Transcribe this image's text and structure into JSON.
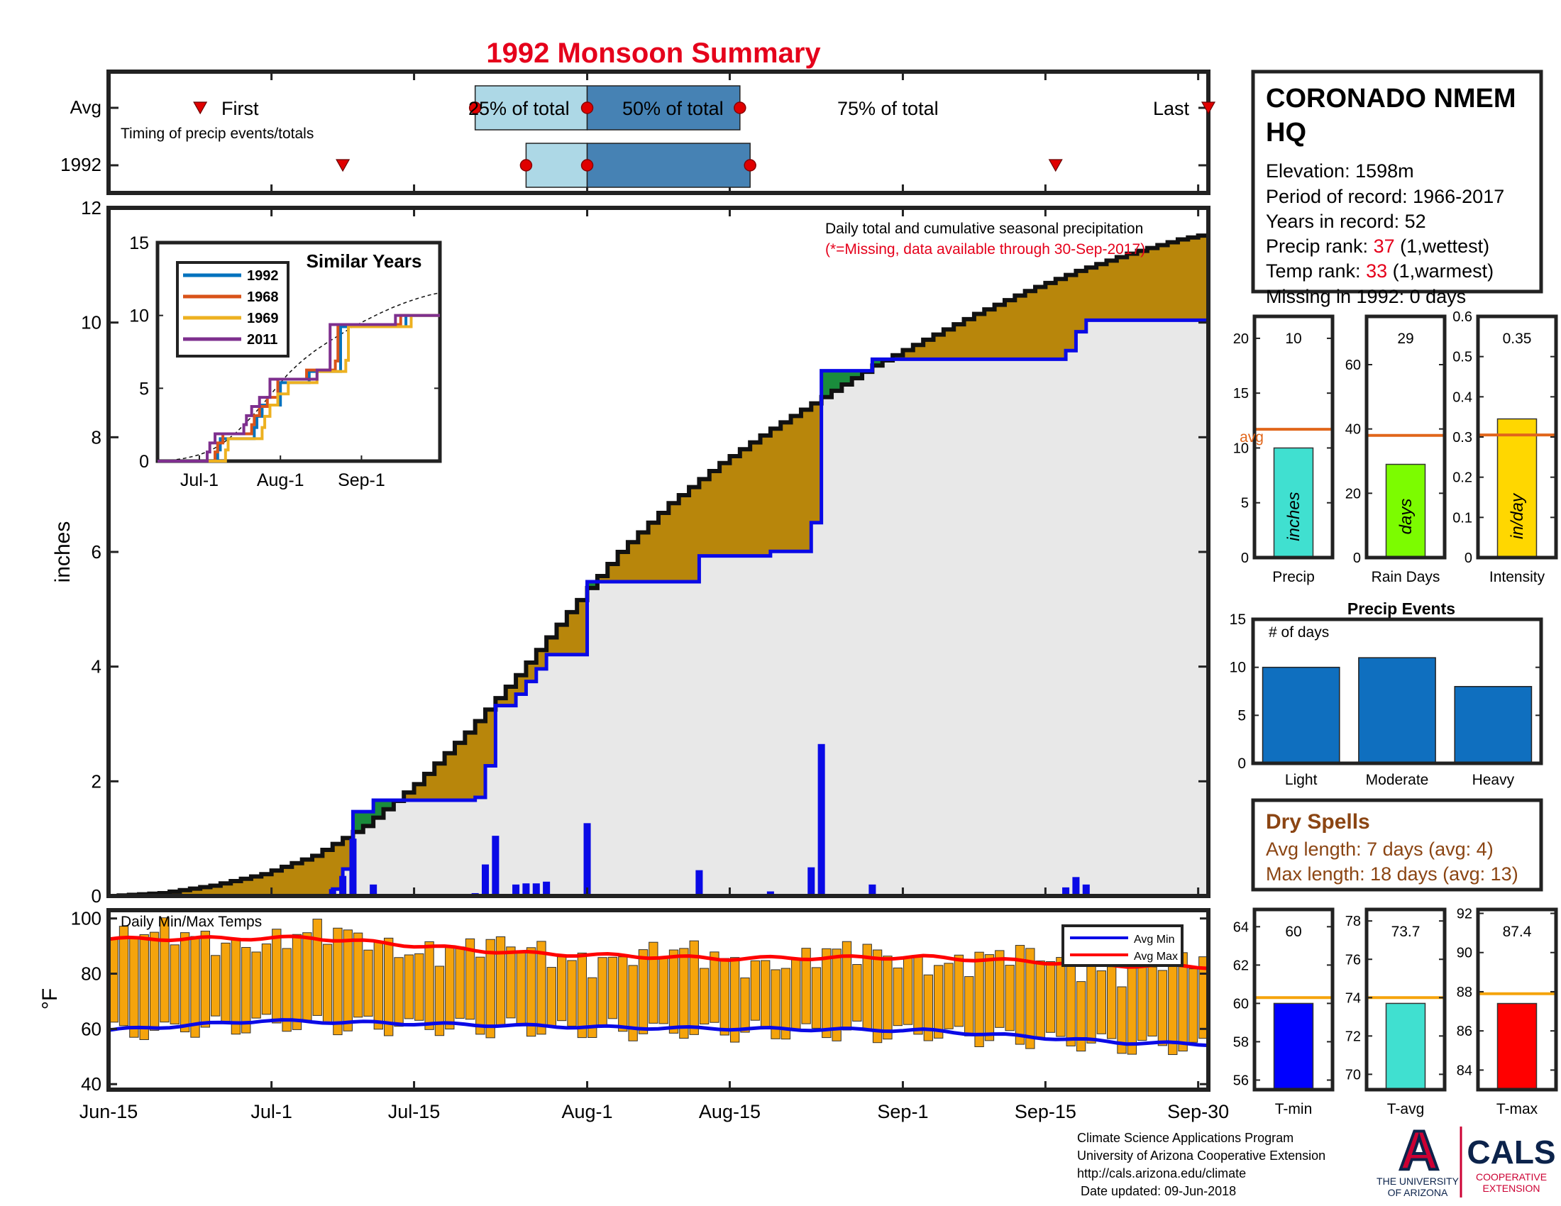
{
  "title": "1992 Monsoon Summary",
  "colors": {
    "title": "#e5001b",
    "cum_fill": "#b8860b",
    "cum_line": "#111111",
    "blue_line": "#0a0ae6",
    "daily_bar": "#0a0ae6",
    "dist_fill": "#e8e8e8",
    "orange": "#e1661b",
    "temp_bar": "#f5a40c",
    "avg_min": "#0a0ae6",
    "avg_max": "#ff0000",
    "quartile_light": "#add8e6",
    "quartile_dark": "#4682b4",
    "marker_red": "#e00000",
    "excess_green": "#1a8c3c"
  },
  "timing": {
    "row_avg": "Avg",
    "row_year": "1992",
    "caption": "Timing of precip events/totals",
    "first_label": "First",
    "last_label": "Last",
    "q25_label": "25% of total",
    "q50_label": "50% of total",
    "q75_label": "75% of total",
    "avg": {
      "first": 9,
      "q25": 36,
      "q50": 47,
      "q75": 62,
      "last": 108
    },
    "year": {
      "first": 23,
      "q25": 41,
      "q50": 47,
      "q75": 63,
      "last": 93
    }
  },
  "main_chart": {
    "ylabel": "inches",
    "ylim": [
      0,
      12
    ],
    "yticks": [
      0,
      2,
      4,
      6,
      8,
      10,
      12
    ],
    "xlim": [
      0,
      108
    ],
    "annotation_line1": "Daily total and cumulative seasonal precipitation",
    "annotation_line2": "(*=Missing, data available through 30-Sep-2017)"
  },
  "x_axis": {
    "ticks": [
      {
        "day": 0,
        "label": "Jun-15"
      },
      {
        "day": 16,
        "label": "Jul-1"
      },
      {
        "day": 30,
        "label": "Jul-15"
      },
      {
        "day": 47,
        "label": "Aug-1"
      },
      {
        "day": 61,
        "label": "Aug-15"
      },
      {
        "day": 78,
        "label": "Sep-1"
      },
      {
        "day": 92,
        "label": "Sep-15"
      },
      {
        "day": 107,
        "label": "Sep-30"
      }
    ]
  },
  "inset": {
    "title": "Similar Years",
    "ylim": [
      0,
      15
    ],
    "yticks": [
      0,
      5,
      10,
      15
    ],
    "xticks": [
      {
        "day": 16,
        "label": "Jul-1"
      },
      {
        "day": 47,
        "label": "Aug-1"
      },
      {
        "day": 78,
        "label": "Sep-1"
      }
    ]
  },
  "station": {
    "name_line1": "CORONADO NMEM",
    "name_line2": "HQ",
    "elevation": "Elevation: 1598m",
    "period": "Period of record: 1966-2017",
    "years": "Years in record: 52",
    "precip_rank_prefix": "Precip rank: ",
    "precip_rank_value": "37",
    "precip_rank_suffix": " (1,wettest)",
    "temp_rank_prefix": "Temp rank: ",
    "temp_rank_value": "33",
    "temp_rank_suffix": " (1,warmest)",
    "missing": "Missing in 1992: 0 days"
  },
  "stat_bars": [
    {
      "xlabel": "Precip",
      "unit": "inches",
      "value": 10,
      "value_label": "10",
      "avg": 11.7,
      "avg_label": "avg",
      "ylim": [
        0,
        22
      ],
      "yticks": [
        0,
        5,
        10,
        15,
        20
      ],
      "color": "#40e0d0"
    },
    {
      "xlabel": "Rain Days",
      "unit": "days",
      "value": 29,
      "value_label": "29",
      "avg": 38,
      "ylim": [
        0,
        75
      ],
      "yticks": [
        0,
        20,
        40,
        60
      ],
      "color": "#7cfc00"
    },
    {
      "xlabel": "Intensity",
      "unit": "in/day",
      "value": 0.345,
      "value_label": "0.35",
      "avg": 0.305,
      "ylim": [
        0,
        0.6
      ],
      "yticks": [
        "0",
        "0.1",
        "0.2",
        "0.3",
        "0.4",
        "0.5",
        "0.6"
      ],
      "color": "#ffd700"
    }
  ],
  "precip_events": {
    "title": "Precip Events",
    "ylabel_note": "# of days",
    "ylim": [
      0,
      15
    ],
    "yticks": [
      0,
      5,
      10,
      15
    ],
    "categories": [
      "Light",
      "Moderate",
      "Heavy"
    ],
    "values": [
      10,
      11,
      8
    ],
    "color": "#0f6fbf"
  },
  "dry_spells": {
    "title": "Dry Spells",
    "avg_length": "Avg length: 7 days (avg: 4)",
    "max_length": "Max length: 18 days (avg: 13)",
    "color": "#8b4513"
  },
  "temp_chart": {
    "title": "Daily Min/Max Temps",
    "ylabel": "°F",
    "ylim": [
      38,
      103
    ],
    "yticks": [
      40,
      60,
      80,
      100
    ],
    "legend_min": "Avg Min",
    "legend_max": "Avg Max"
  },
  "temp_bars": [
    {
      "xlabel": "T-min",
      "value": 60,
      "value_label": "60",
      "avg": 60.3,
      "ylim": [
        55.5,
        64.9
      ],
      "yticks": [
        56,
        58,
        60,
        62,
        64
      ],
      "color": "#0000ff"
    },
    {
      "xlabel": "T-avg",
      "value": 73.7,
      "value_label": "73.7",
      "avg": 74,
      "ylim": [
        69.2,
        78.6
      ],
      "yticks": [
        70,
        72,
        74,
        76,
        78
      ],
      "color": "#40e0d0"
    },
    {
      "xlabel": "T-max",
      "value": 87.4,
      "value_label": "87.4",
      "avg": 87.9,
      "ylim": [
        83,
        92.2
      ],
      "yticks": [
        84,
        86,
        88,
        90,
        92
      ],
      "color": "#ff0000"
    }
  ],
  "footer": {
    "line1": "Climate Science Applications Program",
    "line2": "University of Arizona Cooperative Extension",
    "line3": "http://cals.arizona.edu/climate",
    "line4": " Date updated: 09-Jun-2018",
    "logo_letter": "A",
    "ua_line1": "THE UNIVERSITY",
    "ua_line2": "OF ARIZONA",
    "cals": "CALS",
    "coop_line1": "COOPERATIVE",
    "coop_line2": "EXTENSION"
  },
  "chart_data": [
    {
      "type": "area",
      "title": "Daily total and cumulative seasonal precipitation",
      "ylabel": "inches",
      "ylim": [
        0,
        12
      ],
      "x_start": "Jun-15",
      "x_end": "Sep-30",
      "series": [
        {
          "name": "cumulative_average_knots",
          "points": [
            [
              0,
              0
            ],
            [
              5,
              0.05
            ],
            [
              10,
              0.18
            ],
            [
              15,
              0.38
            ],
            [
              20,
              0.7
            ],
            [
              25,
              1.22
            ],
            [
              30,
              1.95
            ],
            [
              35,
              2.85
            ],
            [
              40,
              3.85
            ],
            [
              45,
              4.95
            ],
            [
              50,
              6.0
            ],
            [
              55,
              6.85
            ],
            [
              60,
              7.55
            ],
            [
              65,
              8.15
            ],
            [
              70,
              8.7
            ],
            [
              75,
              9.25
            ],
            [
              80,
              9.7
            ],
            [
              85,
              10.15
            ],
            [
              90,
              10.55
            ],
            [
              95,
              10.9
            ],
            [
              100,
              11.2
            ],
            [
              105,
              11.45
            ],
            [
              108,
              11.55
            ]
          ]
        },
        {
          "name": "daily_precip_1992",
          "points": [
            [
              22,
              0.12
            ],
            [
              23,
              0.35
            ],
            [
              24,
              1.0
            ],
            [
              26,
              0.2
            ],
            [
              36,
              0.05
            ],
            [
              37,
              0.55
            ],
            [
              38,
              1.05
            ],
            [
              40,
              0.2
            ],
            [
              41,
              0.22
            ],
            [
              42,
              0.22
            ],
            [
              43,
              0.25
            ],
            [
              47,
              1.27
            ],
            [
              58,
              0.45
            ],
            [
              65,
              0.08
            ],
            [
              69,
              0.5
            ],
            [
              70,
              2.65
            ],
            [
              75,
              0.2
            ],
            [
              94,
              0.15
            ],
            [
              95,
              0.33
            ],
            [
              96,
              0.2
            ]
          ]
        }
      ]
    },
    {
      "type": "bar",
      "title": "Daily Min/Max Temps",
      "ylabel": "°F",
      "ylim": [
        38,
        103
      ],
      "series": [
        {
          "name": "Avg Max",
          "points": [
            [
              0,
              92.5
            ],
            [
              20,
              93
            ],
            [
              40,
              87.5
            ],
            [
              60,
              85.5
            ],
            [
              80,
              86
            ],
            [
              100,
              83
            ],
            [
              108,
              82.5
            ]
          ]
        },
        {
          "name": "Avg Min",
          "points": [
            [
              0,
              59.5
            ],
            [
              15,
              63
            ],
            [
              50,
              60.5
            ],
            [
              80,
              59.5
            ],
            [
              100,
              55
            ],
            [
              108,
              54.5
            ]
          ]
        }
      ]
    }
  ]
}
